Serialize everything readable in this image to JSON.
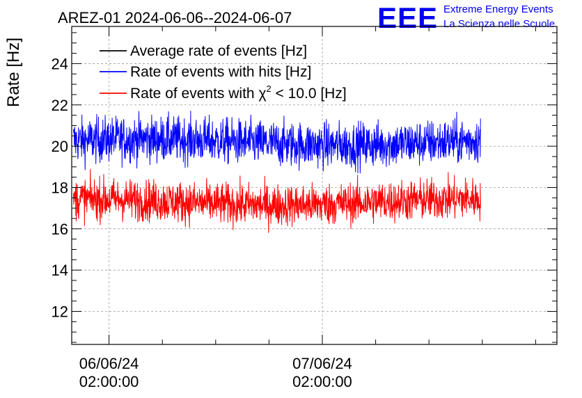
{
  "chart_data": {
    "type": "line",
    "title": "AREZ-01 2024-06-06--2024-06-07",
    "ylabel": "Rate [Hz]",
    "xlabel": "",
    "ylim": [
      10.4,
      25.8
    ],
    "y_ticks": [
      12,
      14,
      16,
      18,
      20,
      22,
      24
    ],
    "y_tick_labels": [
      "12",
      "14",
      "16",
      "18",
      "20",
      "22",
      "24"
    ],
    "x_range_hours": [
      -4.2,
      50.4
    ],
    "x_ticks_hours": [
      0,
      24
    ],
    "x_tick_labels": [
      {
        "date": "06/06/24",
        "time": "02:00:00"
      },
      {
        "date": "07/06/24",
        "time": "02:00:00"
      }
    ],
    "data_span_hours": [
      -4.0,
      41.8
    ],
    "grid": true,
    "legend_position": "top-left",
    "series": [
      {
        "name": "Average rate of events [Hz]",
        "color": "#000000",
        "mean": null,
        "noise": 0
      },
      {
        "name": "Rate of events with hits [Hz]",
        "color": "#0000ff",
        "mean": 20.2,
        "noise": 0.55
      },
      {
        "name": "Rate of events with χ² < 10.0 [Hz]",
        "color": "#ff0000",
        "mean": 17.3,
        "noise": 0.5
      }
    ],
    "legend": {
      "entry_0": "Average rate of events [Hz]",
      "entry_1": "Rate of events with hits [Hz]",
      "entry_2_prefix": "Rate of events with ",
      "entry_2_chi": "χ",
      "entry_2_sup": "2",
      "entry_2_suffix": " < 10.0 [Hz]"
    }
  },
  "logo": {
    "mark": "EEE",
    "line1": "Extreme Energy Events",
    "line2": "La Scienza nelle Scuole",
    "color": "#0000ee"
  }
}
